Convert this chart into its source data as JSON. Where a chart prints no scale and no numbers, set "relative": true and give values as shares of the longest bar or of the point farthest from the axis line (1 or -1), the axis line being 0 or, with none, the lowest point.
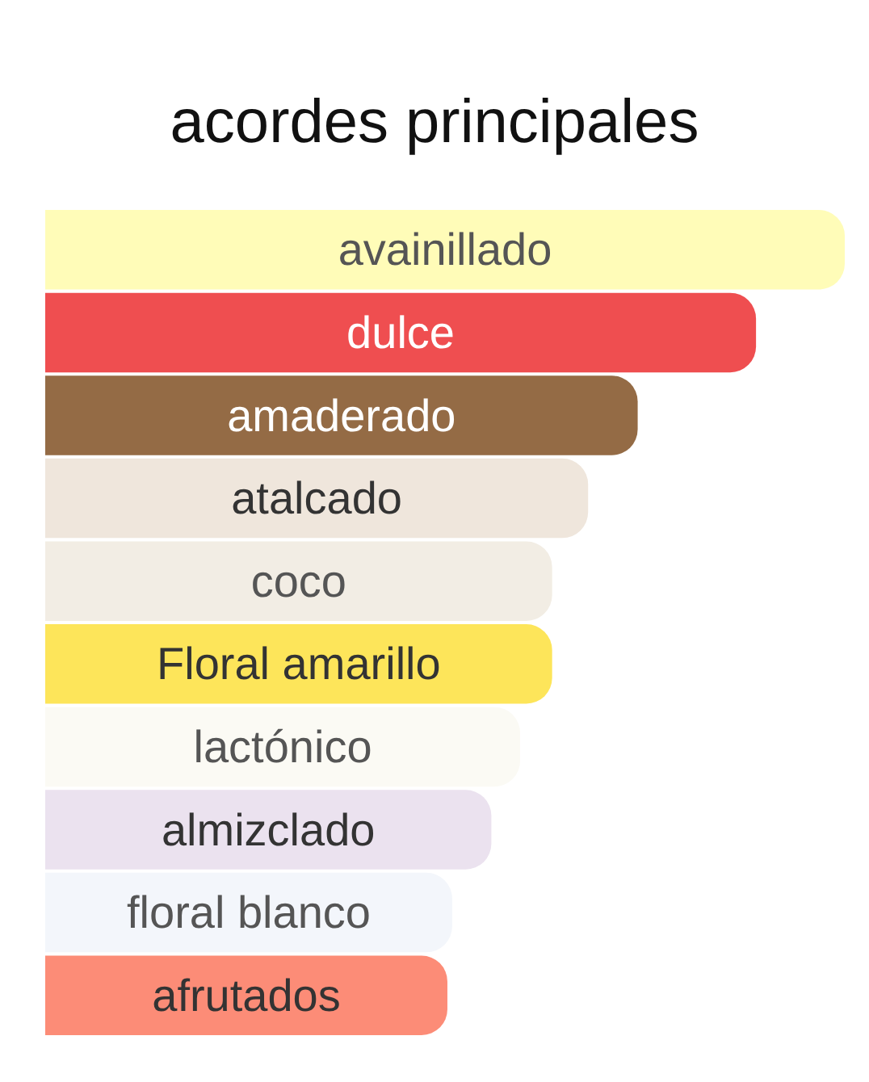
{
  "chart_data": {
    "type": "bar",
    "title": "acordes principales",
    "orientation": "horizontal",
    "relative": true,
    "categories": [
      "avainillado",
      "dulce",
      "amaderado",
      "atalcado",
      "coco",
      "Floral amarillo",
      "lactónico",
      "almizclado",
      "floral blanco",
      "afrutados"
    ],
    "values": [
      1,
      0.889,
      0.741,
      0.679,
      0.634,
      0.634,
      0.594,
      0.558,
      0.509,
      0.503
    ],
    "colors": [
      "#fffcb8",
      "#ef4e50",
      "#946b45",
      "#efe6dc",
      "#f2ede4",
      "#fde55a",
      "#fbfaf4",
      "#ebe2ef",
      "#f3f6fb",
      "#fc8c77"
    ]
  }
}
